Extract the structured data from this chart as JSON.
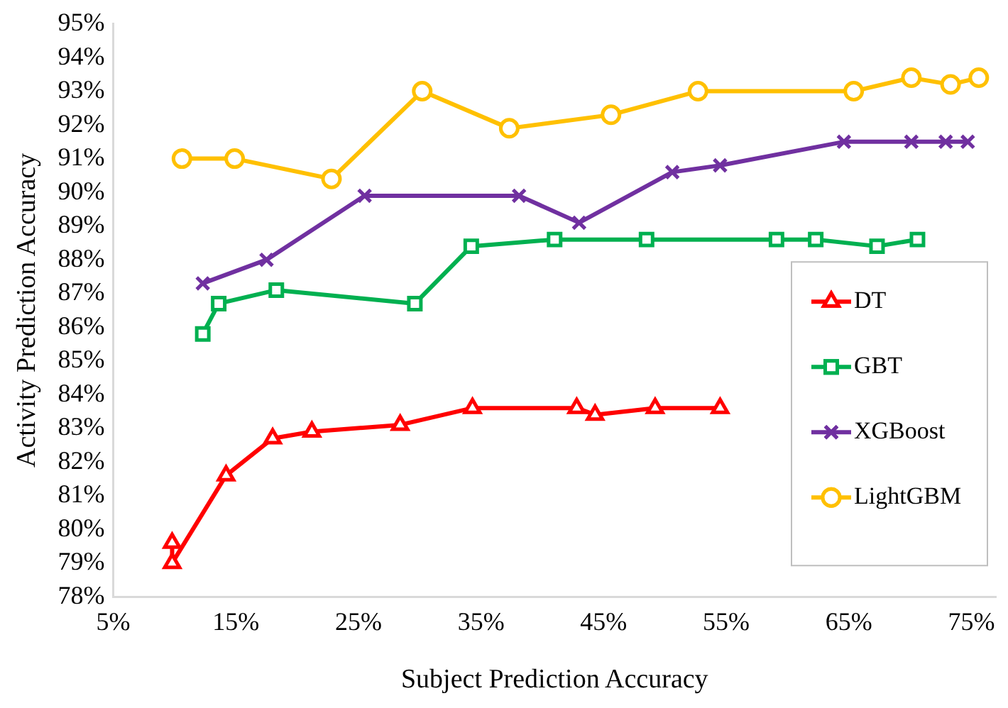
{
  "chart_data": {
    "type": "line",
    "xlabel": "Subject Prediction Accuracy",
    "ylabel": "Activity Prediction Accuracy",
    "xlim": [
      5,
      77
    ],
    "ylim": [
      78,
      95
    ],
    "xticks": [
      {
        "value": 5,
        "label": "5%"
      },
      {
        "value": 15,
        "label": "15%"
      },
      {
        "value": 25,
        "label": "25%"
      },
      {
        "value": 35,
        "label": "35%"
      },
      {
        "value": 45,
        "label": "45%"
      },
      {
        "value": 55,
        "label": "55%"
      },
      {
        "value": 65,
        "label": "65%"
      },
      {
        "value": 75,
        "label": "75%"
      }
    ],
    "yticks": [
      {
        "value": 78,
        "label": "78%"
      },
      {
        "value": 79,
        "label": "79%"
      },
      {
        "value": 80,
        "label": "80%"
      },
      {
        "value": 81,
        "label": "81%"
      },
      {
        "value": 82,
        "label": "82%"
      },
      {
        "value": 83,
        "label": "83%"
      },
      {
        "value": 84,
        "label": "84%"
      },
      {
        "value": 85,
        "label": "85%"
      },
      {
        "value": 86,
        "label": "86%"
      },
      {
        "value": 87,
        "label": "87%"
      },
      {
        "value": 88,
        "label": "88%"
      },
      {
        "value": 89,
        "label": "89%"
      },
      {
        "value": 90,
        "label": "90%"
      },
      {
        "value": 91,
        "label": "91%"
      },
      {
        "value": 92,
        "label": "92%"
      },
      {
        "value": 93,
        "label": "93%"
      },
      {
        "value": 94,
        "label": "94%"
      },
      {
        "value": 95,
        "label": "95%"
      }
    ],
    "grid": false,
    "legend": "bottom right",
    "line_style": "solid",
    "series": [
      {
        "name": "DT",
        "color": "#ff0000",
        "marker": "triangle",
        "x": [
          9.8,
          9.8,
          14.2,
          18.0,
          21.2,
          28.4,
          34.3,
          42.8,
          44.3,
          49.2,
          54.5
        ],
        "values": [
          79.6,
          79.0,
          81.6,
          82.7,
          82.9,
          83.1,
          83.6,
          83.6,
          83.4,
          83.6,
          83.6
        ]
      },
      {
        "name": "GBT",
        "color": "#00b050",
        "marker": "square",
        "x": [
          12.3,
          13.6,
          18.3,
          29.6,
          34.2,
          41.0,
          48.5,
          59.1,
          62.3,
          67.3,
          70.6
        ],
        "values": [
          85.8,
          86.7,
          87.1,
          86.7,
          88.4,
          88.6,
          88.6,
          88.6,
          88.6,
          88.4,
          88.6
        ]
      },
      {
        "name": "XGBoost",
        "color": "#7030a0",
        "marker": "cross",
        "x": [
          12.3,
          17.5,
          25.5,
          38.1,
          43.0,
          50.6,
          54.5,
          64.6,
          70.1,
          72.9,
          74.7
        ],
        "values": [
          87.3,
          88.0,
          89.9,
          89.9,
          89.1,
          90.6,
          90.8,
          91.5,
          91.5,
          91.5,
          91.5
        ]
      },
      {
        "name": "LightGBM",
        "color": "#ffc000",
        "marker": "circle",
        "x": [
          10.6,
          14.9,
          22.8,
          30.2,
          37.3,
          45.6,
          52.7,
          65.4,
          70.1,
          73.3,
          75.6
        ],
        "values": [
          91.0,
          91.0,
          90.4,
          93.0,
          91.9,
          92.3,
          93.0,
          93.0,
          93.4,
          93.2,
          93.4
        ]
      }
    ]
  }
}
